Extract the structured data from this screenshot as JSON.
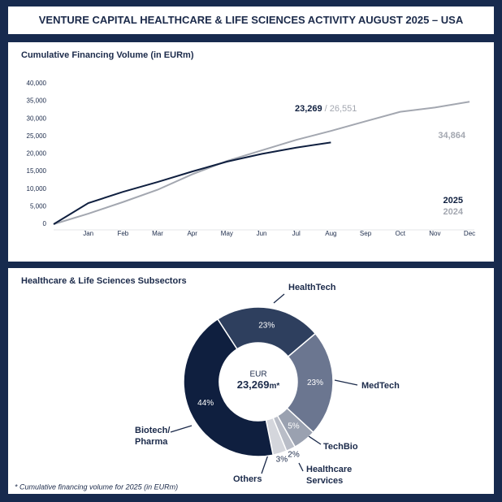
{
  "title": "VENTURE CAPITAL HEALTHCARE & LIFE SCIENCES ACTIVITY AUGUST 2025 – USA",
  "footnote": "* Cumulative financing volume for 2025 (in EURm)",
  "chart_data": [
    {
      "type": "line",
      "title": "Cumulative Financing Volume (in EURm)",
      "categories": [
        null,
        "Jan",
        "Feb",
        "Mar",
        "Apr",
        "May",
        "Jun",
        "Jul",
        "Aug",
        "Sep",
        "Oct",
        "Nov",
        "Dec"
      ],
      "series": [
        {
          "name": "2025",
          "color": "#0f1f3f",
          "values": [
            0,
            6000,
            9200,
            12000,
            15000,
            17800,
            20000,
            21800,
            23269,
            null,
            null,
            null,
            null
          ]
        },
        {
          "name": "2024",
          "color": "#a3a7b0",
          "values": [
            0,
            3000,
            6300,
            9800,
            14200,
            18000,
            21000,
            24000,
            26551,
            29300,
            32000,
            33200,
            34864
          ]
        }
      ],
      "ylim": [
        0,
        40000
      ],
      "yticks": [
        0,
        {
          "value": 5000,
          "label": "5,000"
        },
        {
          "value": 10000,
          "label": "10,000"
        },
        {
          "value": 15000,
          "label": "15,000"
        },
        {
          "value": 20000,
          "label": "20,000"
        },
        {
          "value": 25000,
          "label": "25,000"
        },
        {
          "value": 30000,
          "label": "30,000"
        },
        {
          "value": 35000,
          "label": "35,000"
        },
        {
          "value": 40000,
          "label": "40,000"
        }
      ],
      "annotation": [
        "23,269",
        "/ 26,551"
      ],
      "end_label": "34,864"
    },
    {
      "type": "pie",
      "title": "Healthcare & Life Sciences Subsectors",
      "categories": [
        "HealthTech",
        "MedTech",
        "TechBio",
        "Healthcare\nServices",
        "Others",
        "Biotech/\nPharma"
      ],
      "values": [
        23,
        23,
        5,
        2,
        3,
        44
      ],
      "value_labels": [
        "23%",
        "23%",
        "5%",
        "2%",
        "3%",
        "44%"
      ],
      "colors": [
        "#2e3f5e",
        "#6b7690",
        "#9aa1b0",
        "#b9bdc7",
        "#d4d6dc",
        "#0f1f3f"
      ],
      "center_label": "EUR",
      "center_value": "23,269",
      "center_unit": "m*"
    }
  ]
}
